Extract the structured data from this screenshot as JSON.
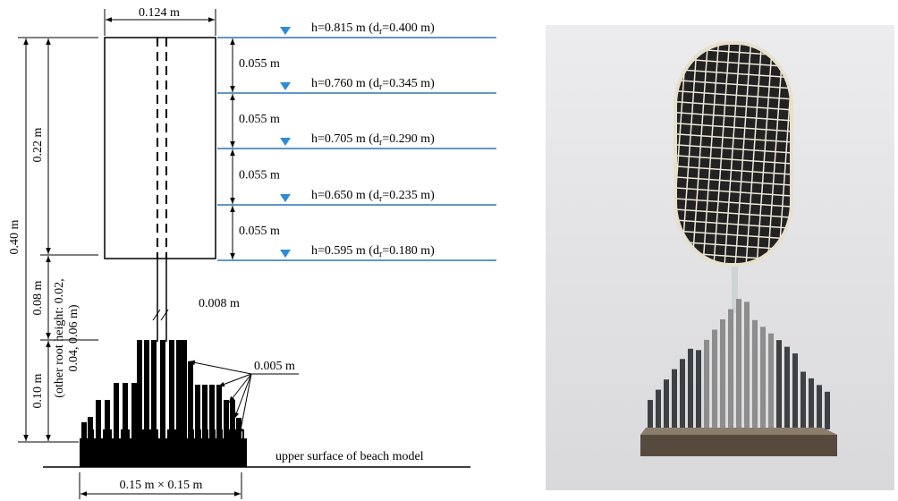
{
  "dimensions": {
    "width": "0.124 m",
    "total_height": "0.40 m",
    "body_height": "0.22 m",
    "stem_height": "0.08 m",
    "root_height": "0.10 m",
    "root_note": [
      "(other root height: 0.02,",
      "0.04, 0.06 m)"
    ],
    "stem_diameter": "0.008 m",
    "root_diameter": "0.005 m",
    "base": "0.15 m × 0.15 m",
    "spacings": [
      "0.055 m",
      "0.055 m",
      "0.055 m",
      "0.055 m"
    ]
  },
  "water_levels": [
    {
      "prefix": "h=0.815 m (d",
      "subscript": "r",
      "suffix": "=0.400 m)"
    },
    {
      "prefix": "h=0.760 m (d",
      "subscript": "r",
      "suffix": "=0.345 m)"
    },
    {
      "prefix": "h=0.705 m (d",
      "subscript": "r",
      "suffix": "=0.290 m)"
    },
    {
      "prefix": "h=0.650 m (d",
      "subscript": "r",
      "suffix": "=0.235 m)"
    },
    {
      "prefix": "h=0.595 m (d",
      "subscript": "r",
      "suffix": "=0.180 m)"
    }
  ],
  "beach_label": "upper surface of beach model"
}
